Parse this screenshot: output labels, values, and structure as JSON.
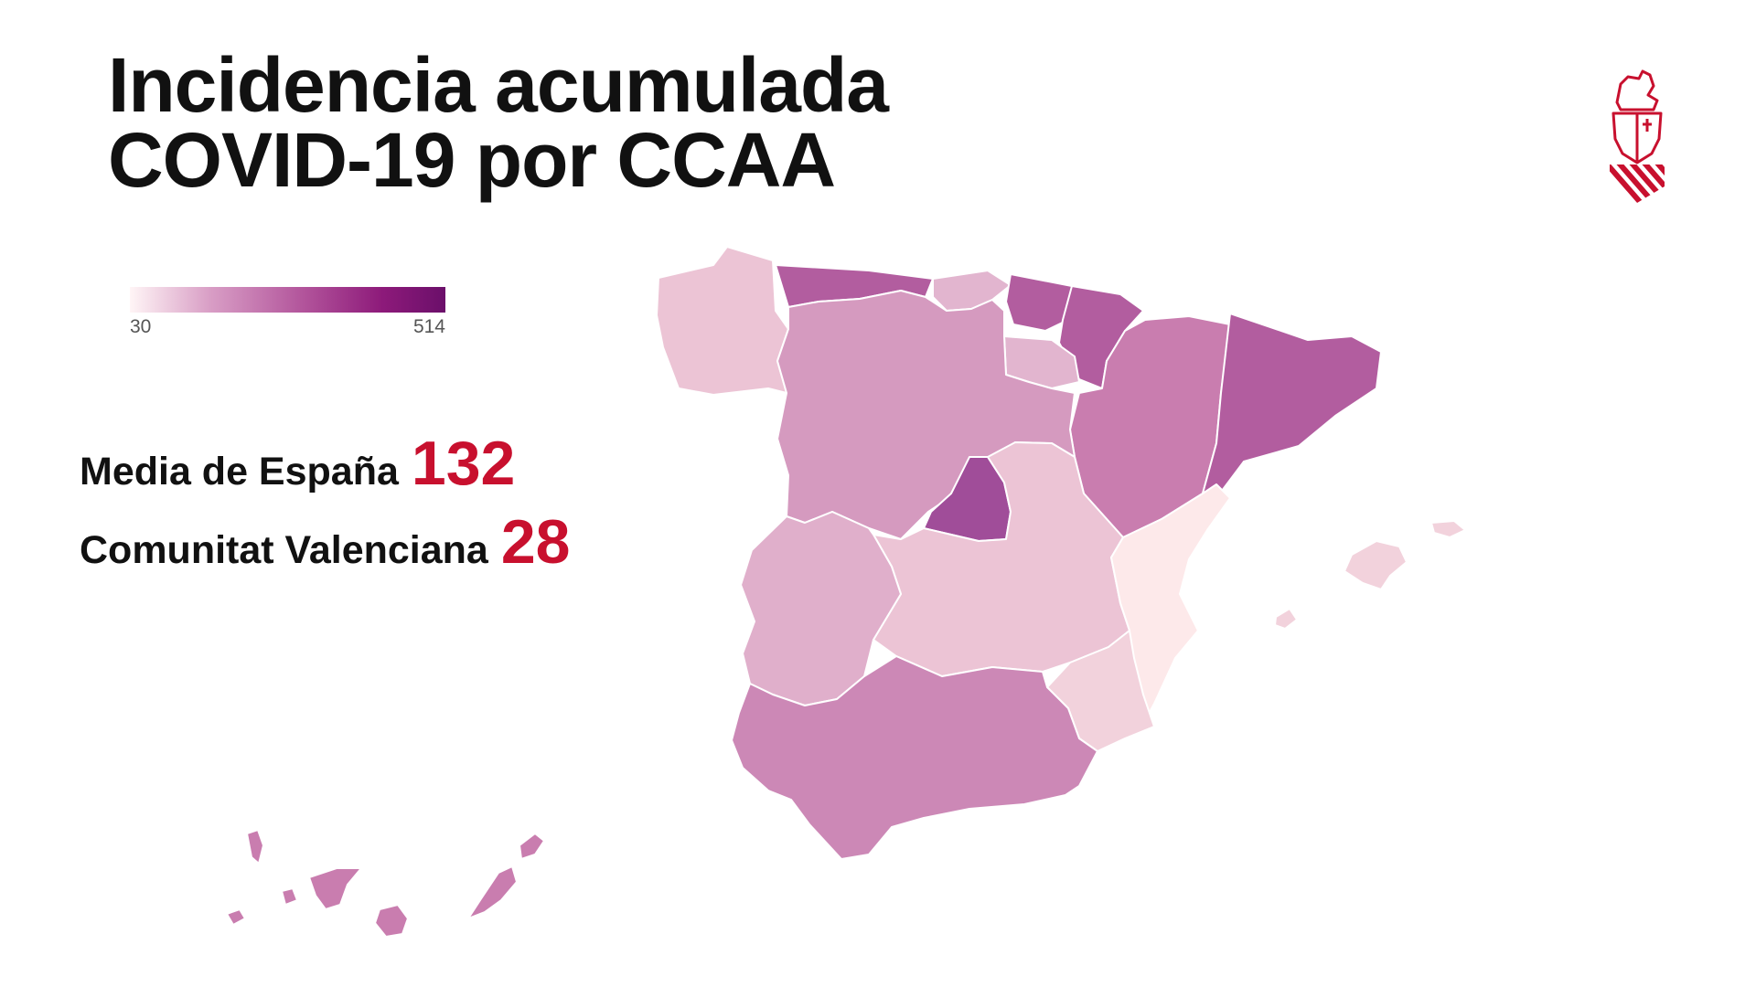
{
  "title": {
    "line1": "Incidencia acumulada",
    "line2": "COVID-19 por CCAA"
  },
  "legend": {
    "min": "30",
    "max": "514"
  },
  "stats": [
    {
      "label": "Media de España",
      "value": "132"
    },
    {
      "label": "Comunitat Valenciana",
      "value": "28"
    }
  ],
  "colors": {
    "accent_red": "#c8102e",
    "scale_low": "#fff5f6",
    "scale_high": "#6b0f6a"
  },
  "regions": {
    "galicia": "#ecc4d5",
    "asturias": "#b25d9f",
    "cantabria": "#e2b5cf",
    "pais_vasco": "#b25d9f",
    "navarra": "#b25d9f",
    "la_rioja": "#e2b5cf",
    "aragon": "#c97daf",
    "cataluna": "#b25d9f",
    "castilla_y_leon": "#d59abf",
    "madrid": "#a04d99",
    "castilla_la_mancha": "#ecc4d5",
    "extremadura": "#e0afcb",
    "comunitat_valenciana": "#fde9ea",
    "murcia": "#f2d2dc",
    "andalucia": "#cc88b6",
    "baleares": "#f2d2dc",
    "canarias": "#c97daf"
  },
  "logo": {
    "name": "generalitat-valenciana-logo"
  }
}
